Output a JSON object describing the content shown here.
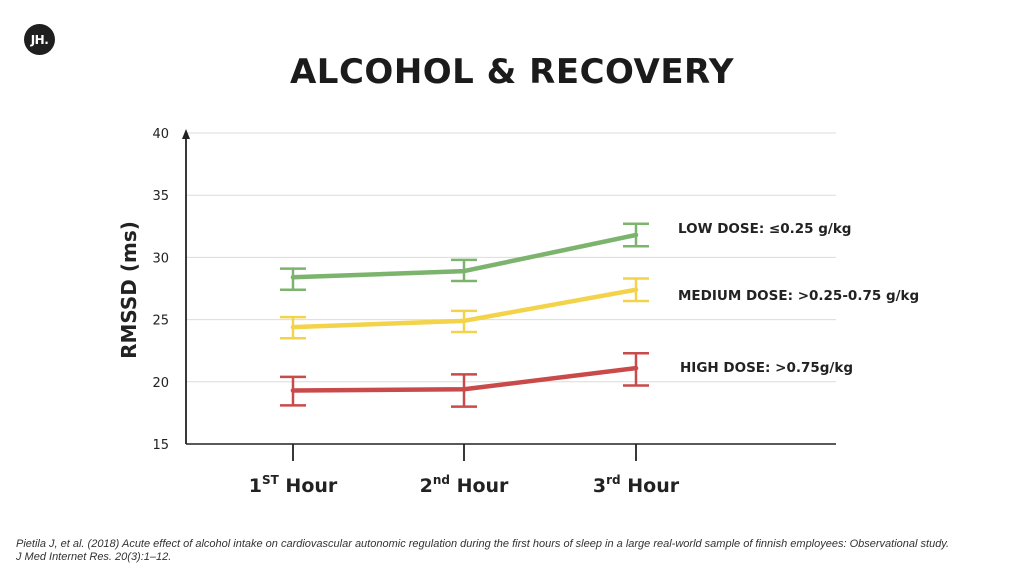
{
  "logo": {
    "text": "JH."
  },
  "title": "ALCOHOL & RECOVERY",
  "citation": {
    "line1": "Pietila J, et al. (2018) Acute effect of alcohol intake on cardiovascular autonomic regulation during the first hours of sleep in a large real-world sample of finnish employees: Observational study.",
    "line2": "J Med Internet Res.  20(3):1–12."
  },
  "chart_data": {
    "type": "line",
    "title": "ALCOHOL & RECOVERY",
    "xlabel": "",
    "ylabel": "RMSSD (ms)",
    "ylim": [
      15,
      40
    ],
    "yticks": [
      15,
      20,
      25,
      30,
      35,
      40
    ],
    "grid": true,
    "categories": [
      {
        "main": "1",
        "sup": "ST",
        "rest": " Hour"
      },
      {
        "main": "2",
        "sup": "nd",
        "rest": " Hour"
      },
      {
        "main": "3",
        "sup": "rd",
        "rest": " Hour"
      }
    ],
    "series": [
      {
        "name": "LOW DOSE: ≤0.25 g/kg",
        "color": "#7cb46e",
        "values": [
          28.4,
          28.9,
          31.8
        ],
        "error_low": [
          27.4,
          28.1,
          30.9
        ],
        "error_high": [
          29.1,
          29.8,
          32.7
        ]
      },
      {
        "name": "MEDIUM DOSE: >0.25-0.75 g/kg",
        "color": "#f2d34a",
        "values": [
          24.4,
          24.9,
          27.4
        ],
        "error_low": [
          23.5,
          24.0,
          26.5
        ],
        "error_high": [
          25.2,
          25.7,
          28.3
        ]
      },
      {
        "name": "HIGH DOSE: >0.75g/kg",
        "color": "#c94a4a",
        "values": [
          19.3,
          19.4,
          21.1
        ],
        "error_low": [
          18.1,
          18.0,
          19.7
        ],
        "error_high": [
          20.4,
          20.6,
          22.3
        ]
      }
    ]
  }
}
